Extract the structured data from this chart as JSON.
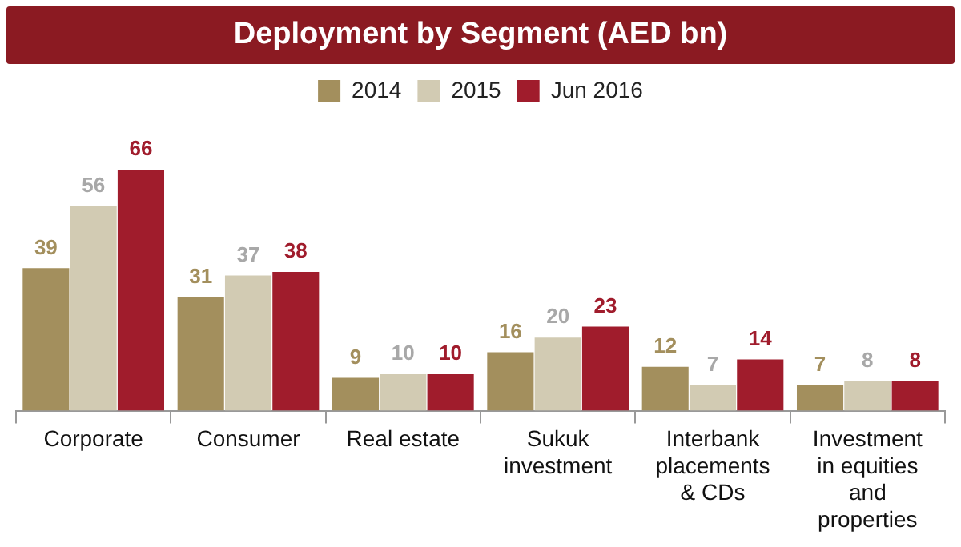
{
  "chart_data": {
    "type": "bar",
    "title": "Deployment by Segment (AED bn)",
    "categories": [
      "Corporate",
      "Consumer",
      "Real estate",
      "Sukuk investment",
      "Interbank placements & CDs",
      "Investment in equities and properties"
    ],
    "series": [
      {
        "name": "2014",
        "color": "#a38f5d",
        "values": [
          39,
          31,
          9,
          16,
          12,
          7
        ]
      },
      {
        "name": "2015",
        "color": "#d2cbb3",
        "values": [
          56,
          37,
          10,
          20,
          7,
          8
        ]
      },
      {
        "name": "Jun 2016",
        "color": "#a01c2c",
        "values": [
          66,
          38,
          10,
          23,
          14,
          8
        ]
      }
    ],
    "data_labels": true,
    "legend": "top"
  }
}
